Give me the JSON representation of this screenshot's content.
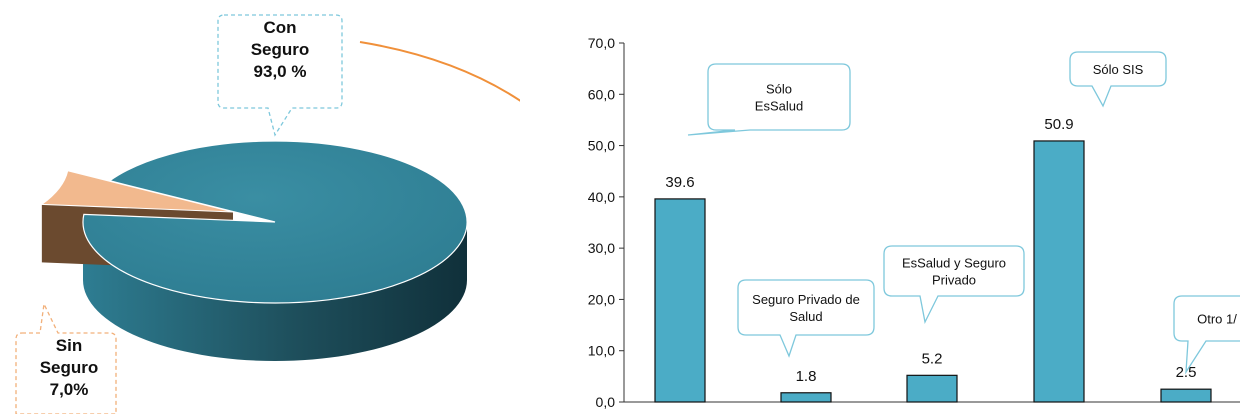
{
  "pie": {
    "callout_con": "Con\nSeguro\n93,0 %",
    "callout_sin": "Sin\nSeguro\n7,0%",
    "colors": {
      "con_top": "#2E7D92",
      "con_side": "#1E4F5C",
      "sin_top": "#F2B98E",
      "sin_side": "#6B4A2F",
      "callout_con_border": "#7EC8DC",
      "callout_sin_border": "#F2B07A",
      "arrow": "#F0903A"
    }
  },
  "chart_data": [
    {
      "type": "pie",
      "categories": [
        "Con Seguro",
        "Sin Seguro"
      ],
      "values": [
        93.0,
        7.0
      ]
    },
    {
      "type": "bar",
      "categories": [
        "Sólo EsSalud",
        "Seguro Privado de Salud",
        "EsSalud y Seguro Privado",
        "Sólo SIS",
        "Otro 1/"
      ],
      "values": [
        39.6,
        1.8,
        5.2,
        50.9,
        2.5
      ],
      "value_labels": [
        "39.6",
        "1.8",
        "5.2",
        "50.9",
        "2.5"
      ],
      "callouts": [
        "Sólo\nEsSalud",
        "Seguro Privado de\nSalud",
        "EsSalud y Seguro\nPrivado",
        "Sólo SIS",
        "Otro 1/"
      ],
      "yticks": [
        "0,0",
        "10,0",
        "20,0",
        "30,0",
        "40,0",
        "50,0",
        "60,0",
        "70,0"
      ],
      "ylim": [
        0,
        70
      ],
      "title": "",
      "xlabel": "",
      "ylabel": "",
      "bar_color": "#4BACC6",
      "callout_border": "#7EC8DC",
      "grid": false
    }
  ]
}
